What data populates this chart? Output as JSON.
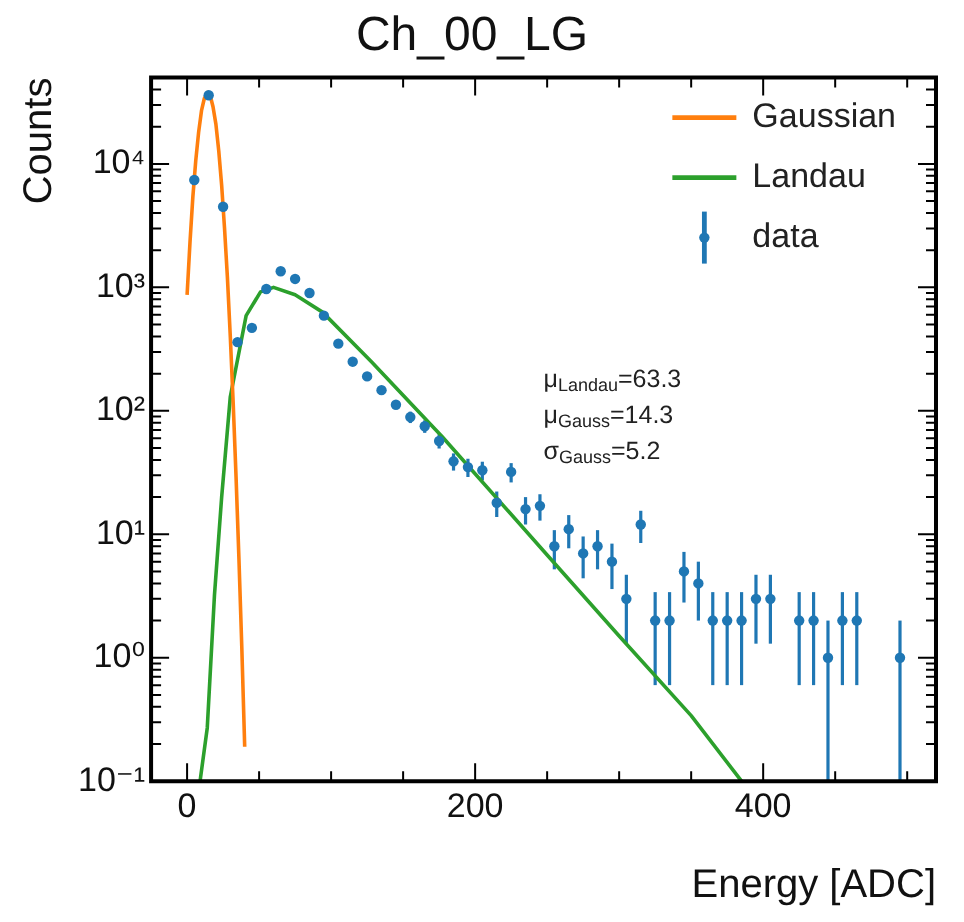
{
  "chart_data": {
    "type": "scatter",
    "title": "Ch_00_LG",
    "xlabel": "Energy [ADC]",
    "ylabel": "Counts",
    "log": "y",
    "grid": false,
    "legend": "top right",
    "xlim": [
      -25,
      520
    ],
    "xticks": [
      0,
      {
        "value": 50,
        "label": null
      },
      {
        "value": 100,
        "label": null
      },
      {
        "value": 150,
        "label": null
      },
      200,
      {
        "value": 250,
        "label": null
      },
      {
        "value": 300,
        "label": null
      },
      {
        "value": 350,
        "label": null
      },
      400,
      {
        "value": 450,
        "label": null
      },
      {
        "value": 500,
        "label": null
      }
    ],
    "ylim": [
      0.1,
      50000
    ],
    "yticks": [
      {
        "value": 0.1,
        "label": "10⁻¹"
      },
      {
        "value": 1,
        "label": "10⁰"
      },
      {
        "value": 10,
        "label": "10¹"
      },
      {
        "value": 100,
        "label": "10²"
      },
      {
        "value": 1000,
        "label": "10³"
      },
      {
        "value": 10000,
        "label": "10⁴"
      }
    ],
    "annotations": [
      "μ$_{Landau}$=63.3",
      "μ$_{Gauss}$=14.3",
      "σ$_{Gauss}$=5.2"
    ],
    "series": [
      {
        "name": "Gaussian",
        "type": "line",
        "color": "#ff7f0e",
        "marker": "none",
        "x": [
          0,
          2,
          4,
          6,
          8,
          10,
          12,
          14.3,
          16,
          18,
          20,
          22,
          24,
          26,
          28,
          30,
          32,
          34,
          36,
          38,
          40
        ],
        "values": [
          870,
          2300,
          5400,
          10600,
          18000,
          27000,
          34000,
          38000,
          36000,
          29000,
          21000,
          12700,
          6700,
          3000,
          1200,
          400,
          116,
          29,
          6.3,
          1.2,
          0.19
        ]
      },
      {
        "name": "Landau",
        "type": "line",
        "color": "#2ca02c",
        "marker": "none",
        "x": [
          9,
          14,
          19,
          24,
          30,
          41,
          51,
          60,
          75,
          94,
          128,
          177,
          250,
          300,
          350,
          385
        ],
        "values": [
          0.1,
          0.27,
          3.2,
          20,
          130,
          590,
          920,
          1000,
          870,
          630,
          250,
          62,
          6.8,
          1.5,
          0.34,
          0.1
        ]
      },
      {
        "name": "data",
        "type": "scatter",
        "color": "#1f77b4",
        "marker": "circle",
        "x": [
          5,
          15,
          25,
          35,
          45,
          55,
          65,
          75,
          85,
          95,
          105,
          115,
          125,
          135,
          145,
          155,
          165,
          175,
          185,
          195,
          205,
          215,
          225,
          235,
          245,
          255,
          265,
          275,
          285,
          295,
          305,
          315,
          325,
          335,
          345,
          355,
          365,
          375,
          385,
          395,
          405,
          425,
          435,
          445,
          455,
          465,
          495
        ],
        "values": [
          7400,
          36000,
          4500,
          360,
          470,
          970,
          1350,
          1170,
          900,
          590,
          350,
          250,
          190,
          147,
          112,
          89,
          75,
          57,
          39,
          35,
          33,
          18,
          32,
          16,
          17,
          8,
          11,
          7,
          8,
          6,
          3,
          12,
          2,
          2,
          5,
          4,
          2,
          2,
          2,
          3,
          3,
          2,
          2,
          1,
          2,
          2,
          1
        ],
        "errors": [
          null,
          null,
          null,
          null,
          null,
          null,
          null,
          null,
          null,
          null,
          null,
          null,
          null,
          null,
          null,
          9.4,
          8.7,
          7.5,
          6.2,
          5.9,
          5.7,
          4.2,
          5.7,
          4,
          4.1,
          2.8,
          3.3,
          2.6,
          2.8,
          2.4,
          1.7,
          3.5,
          1.4,
          1.4,
          2.2,
          2,
          1.4,
          1.4,
          1.4,
          1.7,
          1.7,
          1.4,
          1.4,
          [
            0.1,
            2
          ],
          1.4,
          1.4,
          [
            0.1,
            2
          ]
        ]
      }
    ]
  }
}
